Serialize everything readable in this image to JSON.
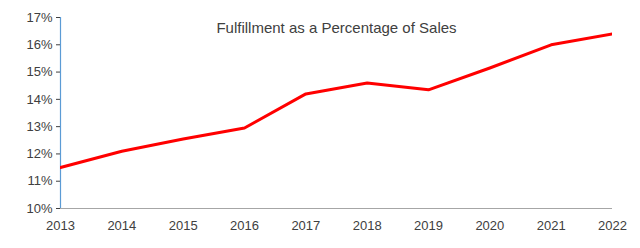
{
  "chart_data": {
    "type": "line",
    "title": "Fulfillment as a Percentage of Sales",
    "x": [
      2013,
      2014,
      2015,
      2016,
      2017,
      2018,
      2019,
      2020,
      2021,
      2022
    ],
    "values": [
      11.5,
      12.1,
      12.55,
      12.95,
      14.2,
      14.6,
      14.35,
      15.15,
      16.0,
      16.4
    ],
    "color": "#ff0000",
    "xlim": [
      2013,
      2022
    ],
    "xticks": [
      2013,
      2014,
      2015,
      2016,
      2017,
      2018,
      2019,
      2020,
      2021,
      2022
    ],
    "ylim": [
      10,
      17
    ],
    "yticks": [
      {
        "value": 10,
        "label": "10%"
      },
      {
        "value": 11,
        "label": "11%"
      },
      {
        "value": 12,
        "label": "12%"
      },
      {
        "value": 13,
        "label": "13%"
      },
      {
        "value": 14,
        "label": "14%"
      },
      {
        "value": 15,
        "label": "15%"
      },
      {
        "value": 16,
        "label": "16%"
      },
      {
        "value": 17,
        "label": "17%"
      }
    ],
    "grid": false
  }
}
